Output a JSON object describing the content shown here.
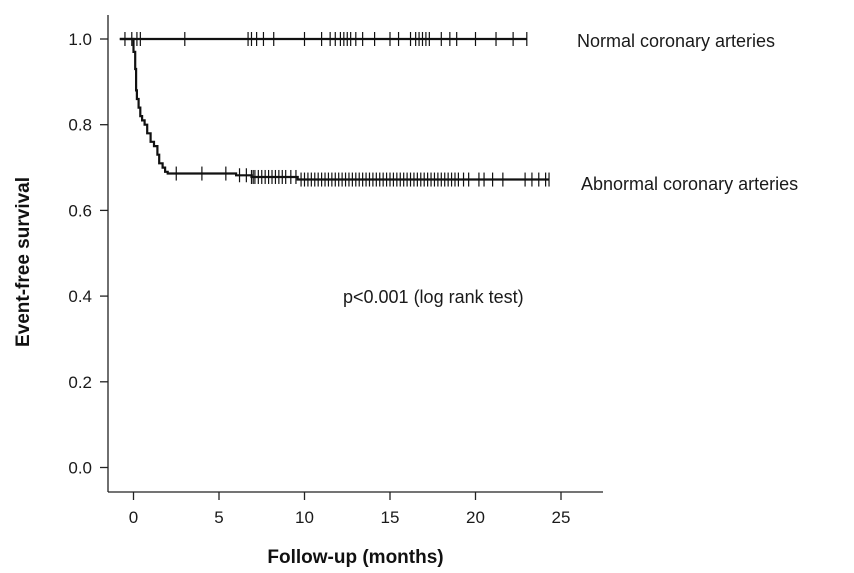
{
  "chart_data": {
    "type": "line",
    "xlabel": "Follow-up (months)",
    "ylabel": "Event-free survival",
    "xlim": [
      -1.5,
      26.5
    ],
    "ylim": [
      -0.03,
      1.06
    ],
    "xticks": [
      0,
      5,
      10,
      15,
      20,
      25
    ],
    "xtick_labels": [
      "0",
      "5",
      "10",
      "15",
      "20",
      "25"
    ],
    "yticks": [
      0.0,
      0.2,
      0.4,
      0.6,
      0.8,
      1.0
    ],
    "ytick_labels": [
      "0.0",
      "0.2",
      "0.4",
      "0.6",
      "0.8",
      "1.0"
    ],
    "grid": false,
    "legend": "none",
    "annotations": [
      {
        "text": "p<0.001 (log rank test)",
        "x": 12.5,
        "y": 0.4
      }
    ],
    "series": [
      {
        "name": "Normal coronary arteries",
        "color": "#111111",
        "step": [
          [
            -0.8,
            1.0
          ],
          [
            23.0,
            1.0
          ]
        ],
        "censored_x": [
          -0.5,
          -0.1,
          0.2,
          0.4,
          3.0,
          6.7,
          6.9,
          7.2,
          7.6,
          8.2,
          10.0,
          11.0,
          11.5,
          11.8,
          12.1,
          12.3,
          12.5,
          12.7,
          13.0,
          13.4,
          14.1,
          15.0,
          15.5,
          16.2,
          16.5,
          16.7,
          16.9,
          17.1,
          17.3,
          18.0,
          18.5,
          18.9,
          20.0,
          21.2,
          22.2,
          23.0
        ]
      },
      {
        "name": "Abnormal coronary arteries",
        "color": "#111111",
        "step": [
          [
            -0.8,
            1.0
          ],
          [
            0.0,
            1.0
          ],
          [
            0.0,
            0.97
          ],
          [
            0.1,
            0.97
          ],
          [
            0.1,
            0.93
          ],
          [
            0.15,
            0.93
          ],
          [
            0.15,
            0.88
          ],
          [
            0.2,
            0.88
          ],
          [
            0.2,
            0.86
          ],
          [
            0.3,
            0.86
          ],
          [
            0.3,
            0.84
          ],
          [
            0.4,
            0.84
          ],
          [
            0.4,
            0.82
          ],
          [
            0.5,
            0.82
          ],
          [
            0.5,
            0.81
          ],
          [
            0.65,
            0.81
          ],
          [
            0.65,
            0.8
          ],
          [
            0.8,
            0.8
          ],
          [
            0.8,
            0.78
          ],
          [
            1.0,
            0.78
          ],
          [
            1.0,
            0.76
          ],
          [
            1.2,
            0.76
          ],
          [
            1.2,
            0.75
          ],
          [
            1.4,
            0.75
          ],
          [
            1.4,
            0.73
          ],
          [
            1.5,
            0.73
          ],
          [
            1.5,
            0.71
          ],
          [
            1.7,
            0.71
          ],
          [
            1.7,
            0.7
          ],
          [
            1.85,
            0.7
          ],
          [
            1.85,
            0.69
          ],
          [
            2.0,
            0.69
          ],
          [
            2.0,
            0.686
          ],
          [
            6.0,
            0.686
          ],
          [
            6.0,
            0.682
          ],
          [
            6.9,
            0.682
          ],
          [
            6.9,
            0.678
          ],
          [
            9.6,
            0.678
          ],
          [
            9.6,
            0.672
          ],
          [
            24.3,
            0.672
          ]
        ],
        "censored_x": [
          2.5,
          4.0,
          5.4,
          6.2,
          6.6,
          6.9,
          7.0,
          7.1,
          7.3,
          7.5,
          7.7,
          7.9,
          8.1,
          8.3,
          8.5,
          8.7,
          8.9,
          9.2,
          9.5,
          9.8,
          10.0,
          10.2,
          10.4,
          10.6,
          10.8,
          11.0,
          11.2,
          11.4,
          11.6,
          11.8,
          12.0,
          12.2,
          12.4,
          12.6,
          12.8,
          13.0,
          13.2,
          13.4,
          13.6,
          13.8,
          14.0,
          14.2,
          14.4,
          14.6,
          14.8,
          15.0,
          15.2,
          15.4,
          15.6,
          15.8,
          16.0,
          16.2,
          16.4,
          16.6,
          16.8,
          17.0,
          17.2,
          17.4,
          17.6,
          17.8,
          18.0,
          18.2,
          18.4,
          18.6,
          18.8,
          19.0,
          19.3,
          19.6,
          20.2,
          20.5,
          21.0,
          21.6,
          22.9,
          23.3,
          23.7,
          24.1,
          24.3
        ]
      }
    ]
  }
}
